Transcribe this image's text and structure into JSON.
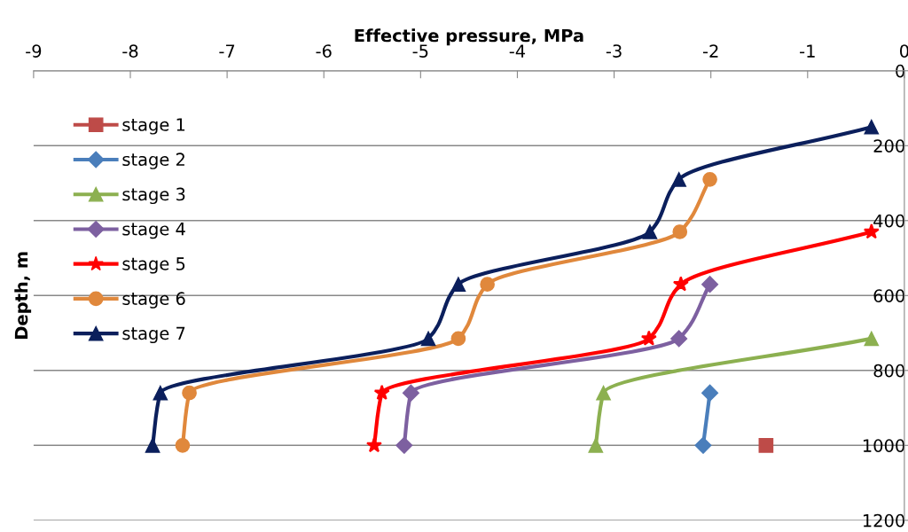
{
  "chart_data": {
    "type": "line",
    "xlabel": "Effective pressure, MPa",
    "ylabel": "Depth, m",
    "xlim": [
      -9,
      0
    ],
    "xticks": [
      -9,
      -8,
      -7,
      -6,
      -5,
      -4,
      -3,
      -2,
      -1,
      0
    ],
    "ylim": [
      1200,
      0
    ],
    "yticks": [
      0,
      200,
      400,
      600,
      800,
      1000,
      1200
    ],
    "grid": "y",
    "legend": "top left",
    "series": [
      {
        "name": "stage 1",
        "color": "#be4b48",
        "marker": "square",
        "x": [
          -1.43
        ],
        "values": [
          1000
        ]
      },
      {
        "name": "stage 2",
        "color": "#4a7ebb",
        "marker": "diamond",
        "x": [
          -2.01,
          -2.08
        ],
        "values": [
          860,
          1000
        ]
      },
      {
        "name": "stage 3",
        "color": "#8cb050",
        "marker": "triangle",
        "x": [
          -0.34,
          -3.11,
          -3.19
        ],
        "values": [
          715,
          860,
          1000
        ]
      },
      {
        "name": "stage 4",
        "color": "#7d60a0",
        "marker": "diamond",
        "x": [
          -2.01,
          -2.33,
          -5.1,
          -5.17
        ],
        "values": [
          570,
          715,
          860,
          1000
        ]
      },
      {
        "name": "stage 5",
        "color": "#ff0000",
        "marker": "star",
        "x": [
          -0.34,
          -2.31,
          -2.64,
          -5.4,
          -5.48
        ],
        "values": [
          430,
          570,
          715,
          860,
          1000
        ]
      },
      {
        "name": "stage 6",
        "color": "#e0883c",
        "marker": "circle",
        "x": [
          -2.01,
          -2.32,
          -4.31,
          -4.61,
          -7.39,
          -7.46
        ],
        "values": [
          290,
          430,
          570,
          715,
          860,
          1000
        ]
      },
      {
        "name": "stage 7",
        "color": "#0b1f5c",
        "marker": "triangle",
        "x": [
          -0.34,
          -2.33,
          -2.63,
          -4.61,
          -4.92,
          -7.69,
          -7.77
        ],
        "values": [
          150,
          290,
          430,
          570,
          715,
          860,
          1000
        ]
      }
    ]
  }
}
